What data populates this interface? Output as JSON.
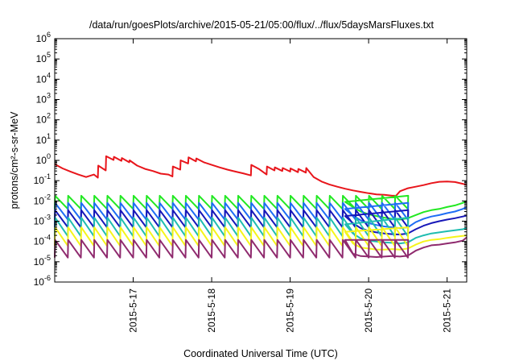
{
  "chart_data": {
    "type": "line",
    "title": "/data/run/goesPlots/archive/2015-05-21/05:00/flux/../flux/5daysMarsFluxes.txt",
    "xlabel": "Coordinated Universal Time (UTC)",
    "ylabel": "protons/cm²-s-sr-MeV",
    "yscale": "log",
    "ylim": [
      1e-06,
      1000000.0
    ],
    "xlim": [
      "2015-05-16 00:00",
      "2015-05-21 06:00"
    ],
    "y_ticks": [
      {
        "value": 1e-06,
        "base": "10",
        "exp": "-6"
      },
      {
        "value": 1e-05,
        "base": "10",
        "exp": "-5"
      },
      {
        "value": 0.0001,
        "base": "10",
        "exp": "-4"
      },
      {
        "value": 0.001,
        "base": "10",
        "exp": "-3"
      },
      {
        "value": 0.01,
        "base": "10",
        "exp": "-2"
      },
      {
        "value": 0.1,
        "base": "10",
        "exp": "-1"
      },
      {
        "value": 1,
        "base": "10",
        "exp": "0"
      },
      {
        "value": 10.0,
        "base": "10",
        "exp": "1"
      },
      {
        "value": 100.0,
        "base": "10",
        "exp": "2"
      },
      {
        "value": 1000.0,
        "base": "10",
        "exp": "3"
      },
      {
        "value": 10000.0,
        "base": "10",
        "exp": "4"
      },
      {
        "value": 100000.0,
        "base": "10",
        "exp": "5"
      },
      {
        "value": 1000000.0,
        "base": "10",
        "exp": "6"
      }
    ],
    "x_ticks": [
      {
        "value": "2015-05-17 00:00",
        "label": "2015-5-17"
      },
      {
        "value": "2015-05-18 00:00",
        "label": "2015-5-18"
      },
      {
        "value": "2015-05-19 00:00",
        "label": "2015-5-19"
      },
      {
        "value": "2015-05-20 00:00",
        "label": "2015-5-20"
      },
      {
        "value": "2015-05-21 00:00",
        "label": "2015-5-21"
      }
    ],
    "grid": false,
    "legend": "none",
    "series": [
      {
        "color": "#e8151b",
        "x": [
          "2015-05-16 00:00",
          "2015-05-16 02:24",
          "2015-05-16 04:48",
          "2015-05-16 07:12",
          "2015-05-16 09:36",
          "2015-05-16 12:00",
          "2015-05-16 13:12",
          "2015-05-16 13:19",
          "2015-05-16 15:36",
          "2015-05-16 15:43",
          "2015-05-16 18:00",
          "2015-05-16 18:07",
          "2015-05-16 20:24",
          "2015-05-16 20:31",
          "2015-05-16 22:48",
          "2015-05-16 22:55",
          "2015-05-17 01:12",
          "2015-05-17 03:36",
          "2015-05-17 06:00",
          "2015-05-17 08:24",
          "2015-05-17 10:48",
          "2015-05-17 12:00",
          "2015-05-17 12:07",
          "2015-05-17 14:24",
          "2015-05-17 14:31",
          "2015-05-17 16:48",
          "2015-05-17 16:55",
          "2015-05-17 19:12",
          "2015-05-17 19:19",
          "2015-05-17 21:36",
          "2015-05-18 00:00",
          "2015-05-18 02:24",
          "2015-05-18 04:48",
          "2015-05-18 07:12",
          "2015-05-18 09:36",
          "2015-05-18 12:00",
          "2015-05-18 12:07",
          "2015-05-18 14:24",
          "2015-05-18 16:48",
          "2015-05-18 16:55",
          "2015-05-18 19:12",
          "2015-05-18 19:19",
          "2015-05-18 21:36",
          "2015-05-18 21:43",
          "2015-05-19 00:00",
          "2015-05-19 00:07",
          "2015-05-19 02:24",
          "2015-05-19 02:31",
          "2015-05-19 04:48",
          "2015-05-19 04:55",
          "2015-05-19 07:12",
          "2015-05-19 09:36",
          "2015-05-19 12:00",
          "2015-05-19 14:24",
          "2015-05-19 16:48",
          "2015-05-19 19:12",
          "2015-05-19 21:36",
          "2015-05-20 00:00",
          "2015-05-20 02:24",
          "2015-05-20 04:48",
          "2015-05-20 07:12",
          "2015-05-20 08:24",
          "2015-05-20 09:36",
          "2015-05-20 12:00",
          "2015-05-20 14:24",
          "2015-05-20 16:48",
          "2015-05-20 19:12",
          "2015-05-20 21:36",
          "2015-05-21 00:00",
          "2015-05-21 02:24",
          "2015-05-21 04:48",
          "2015-05-21 06:00"
        ],
        "values": [
          0.65,
          0.4,
          0.28,
          0.2,
          0.15,
          0.2,
          0.14,
          0.55,
          0.32,
          1.6,
          1.05,
          1.5,
          0.95,
          1.3,
          0.8,
          1.0,
          0.55,
          0.38,
          0.3,
          0.22,
          0.2,
          0.16,
          0.5,
          0.35,
          1.0,
          0.7,
          1.4,
          0.9,
          1.25,
          0.8,
          0.6,
          0.45,
          0.35,
          0.28,
          0.23,
          0.18,
          0.6,
          0.38,
          0.2,
          0.5,
          0.32,
          0.45,
          0.3,
          0.42,
          0.28,
          0.4,
          0.26,
          0.38,
          0.25,
          0.42,
          0.15,
          0.09,
          0.065,
          0.05,
          0.04,
          0.033,
          0.028,
          0.024,
          0.021,
          0.02,
          0.018,
          0.018,
          0.03,
          0.042,
          0.05,
          0.06,
          0.075,
          0.088,
          0.09,
          0.085,
          0.07,
          0.06
        ]
      },
      {
        "color": "#22e822",
        "pattern": {
          "start": "2015-05-16 00:00",
          "step_hours": 4,
          "count": 28,
          "low": 0.004,
          "high": 0.018
        },
        "x": [
          "2015-05-19 16:48",
          "2015-05-19 19:12",
          "2015-05-19 21:36",
          "2015-05-20 00:00",
          "2015-05-20 02:24",
          "2015-05-20 04:48",
          "2015-05-20 07:12",
          "2015-05-20 09:36",
          "2015-05-20 12:00",
          "2015-05-20 14:24",
          "2015-05-20 16:48",
          "2015-05-20 19:12",
          "2015-05-20 21:36",
          "2015-05-21 00:00",
          "2015-05-21 02:24",
          "2015-05-21 04:48",
          "2015-05-21 06:00"
        ],
        "values": [
          0.009,
          0.005,
          0.003,
          0.0022,
          0.0018,
          0.0015,
          0.0013,
          0.0012,
          0.0014,
          0.002,
          0.0028,
          0.0035,
          0.004,
          0.005,
          0.006,
          0.008,
          0.01
        ]
      },
      {
        "color": "#1e6df5",
        "pattern": {
          "start": "2015-05-16 00:00",
          "step_hours": 4,
          "count": 28,
          "low": 0.0012,
          "high": 0.008
        },
        "x": [
          "2015-05-19 16:48",
          "2015-05-19 19:12",
          "2015-05-19 21:36",
          "2015-05-20 00:00",
          "2015-05-20 02:24",
          "2015-05-20 04:48",
          "2015-05-20 07:12",
          "2015-05-20 09:36",
          "2015-05-20 12:00",
          "2015-05-20 14:24",
          "2015-05-20 16:48",
          "2015-05-20 19:12",
          "2015-05-20 21:36",
          "2015-05-21 00:00",
          "2015-05-21 02:24",
          "2015-05-21 04:48",
          "2015-05-21 06:00"
        ],
        "values": [
          0.004,
          0.0019,
          0.0011,
          0.0008,
          0.00065,
          0.00055,
          0.0005,
          0.00045,
          0.0005,
          0.0009,
          0.0013,
          0.0017,
          0.002,
          0.0025,
          0.003,
          0.004,
          0.005
        ]
      },
      {
        "color": "#1717b8",
        "pattern": {
          "start": "2015-05-16 00:00",
          "step_hours": 4,
          "count": 28,
          "low": 0.0005,
          "high": 0.0035
        },
        "x": [
          "2015-05-19 16:48",
          "2015-05-19 19:12",
          "2015-05-19 21:36",
          "2015-05-20 00:00",
          "2015-05-20 02:24",
          "2015-05-20 04:48",
          "2015-05-20 07:12",
          "2015-05-20 09:36",
          "2015-05-20 12:00",
          "2015-05-20 14:24",
          "2015-05-20 16:48",
          "2015-05-20 19:12",
          "2015-05-20 21:36",
          "2015-05-21 00:00",
          "2015-05-21 02:24",
          "2015-05-21 04:48",
          "2015-05-21 06:00"
        ],
        "values": [
          0.0018,
          0.0008,
          0.00045,
          0.00033,
          0.00028,
          0.00025,
          0.00023,
          0.00022,
          0.00025,
          0.0004,
          0.0006,
          0.0008,
          0.001,
          0.0012,
          0.0014,
          0.0017,
          0.0019
        ]
      },
      {
        "color": "#1fbdb0",
        "pattern": {
          "start": "2015-05-16 00:00",
          "step_hours": 4,
          "count": 28,
          "low": 0.00018,
          "high": 0.0015
        },
        "x": [
          "2015-05-19 16:48",
          "2015-05-19 19:12",
          "2015-05-19 21:36",
          "2015-05-20 00:00",
          "2015-05-20 02:24",
          "2015-05-20 04:48",
          "2015-05-20 07:12",
          "2015-05-20 09:36",
          "2015-05-20 12:00",
          "2015-05-20 14:24",
          "2015-05-20 16:48",
          "2015-05-20 19:12",
          "2015-05-20 21:36",
          "2015-05-21 00:00",
          "2015-05-21 02:24",
          "2015-05-21 04:48",
          "2015-05-21 06:00"
        ],
        "values": [
          0.0007,
          0.00025,
          0.00014,
          0.00011,
          0.0001,
          9e-05,
          8.5e-05,
          8e-05,
          9e-05,
          0.00015,
          0.0002,
          0.00025,
          0.00028,
          0.00032,
          0.00036,
          0.0004,
          0.00045
        ]
      },
      {
        "color": "#f5f51a",
        "pattern": {
          "start": "2015-05-16 00:00",
          "step_hours": 4,
          "count": 28,
          "low": 6e-05,
          "high": 0.0005
        },
        "x": [
          "2015-05-19 16:48",
          "2015-05-19 19:12",
          "2015-05-19 21:36",
          "2015-05-20 00:00",
          "2015-05-20 02:24",
          "2015-05-20 04:48",
          "2015-05-20 07:12",
          "2015-05-20 09:36",
          "2015-05-20 12:00",
          "2015-05-20 14:24",
          "2015-05-20 16:48",
          "2015-05-20 19:12",
          "2015-05-20 21:36",
          "2015-05-21 00:00",
          "2015-05-21 02:24",
          "2015-05-21 04:48",
          "2015-05-21 06:00"
        ],
        "values": [
          0.0003,
          8e-05,
          5e-05,
          4.5e-05,
          4e-05,
          4e-05,
          4.2e-05,
          4e-05,
          4.5e-05,
          7e-05,
          0.0001,
          0.00012,
          0.00013,
          0.00015,
          0.00017,
          0.00019,
          0.0002
        ]
      },
      {
        "color": "#8f2a6e",
        "pattern": {
          "start": "2015-05-16 00:00",
          "step_hours": 4,
          "count": 28,
          "low": 1.6e-05,
          "high": 0.00012
        },
        "x": [
          "2015-05-19 16:48",
          "2015-05-19 19:12",
          "2015-05-19 21:36",
          "2015-05-20 00:00",
          "2015-05-20 02:24",
          "2015-05-20 04:48",
          "2015-05-20 07:12",
          "2015-05-20 09:36",
          "2015-05-20 12:00",
          "2015-05-20 14:24",
          "2015-05-20 16:48",
          "2015-05-20 19:12",
          "2015-05-20 21:36",
          "2015-05-21 00:00",
          "2015-05-21 02:24",
          "2015-05-21 04:48",
          "2015-05-21 06:00"
        ],
        "values": [
          0.00012,
          2.5e-05,
          1.9e-05,
          1.8e-05,
          1.7e-05,
          1.8e-05,
          1.9e-05,
          1.8e-05,
          2e-05,
          3.5e-05,
          5e-05,
          6.5e-05,
          7e-05,
          8e-05,
          9e-05,
          0.00011,
          0.00016
        ]
      }
    ]
  }
}
